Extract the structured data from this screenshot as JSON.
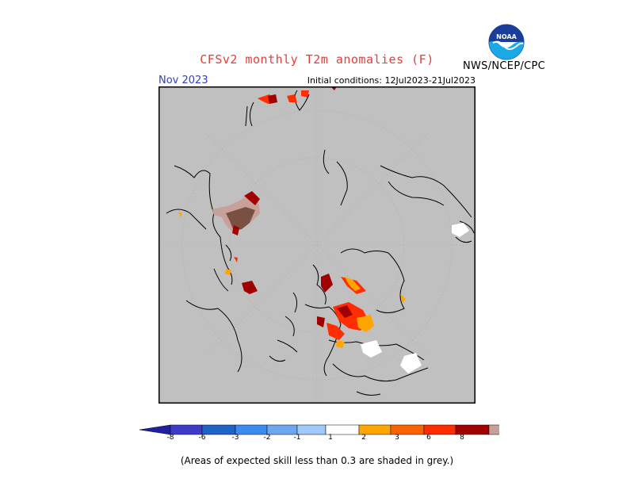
{
  "title": "CFSv2 monthly T2m anomalies (F)",
  "agency": "NWS/NCEP/CPC",
  "logo": {
    "text": "NOAA",
    "icon": "noaa-logo"
  },
  "forecast_month": "Nov 2023",
  "initial_conditions": "Initial conditions: 12Jul2023-21Jul2023",
  "map": {
    "projection": "north polar stereographic",
    "background_color": "#c0c0c0",
    "graticule": "dotted"
  },
  "colorbar": {
    "negative_colors": [
      "#2020a0",
      "#3c3cc8",
      "#1e64c8",
      "#3c8cf0",
      "#6ea6f0",
      "#a0c8f8"
    ],
    "neutral_color": "#ffffff",
    "positive_colors": [
      "#ffa500",
      "#fa6400",
      "#ff2d00",
      "#a00000",
      "#c8a09a",
      "#7a5045"
    ],
    "labels": [
      "-8",
      "-6",
      "-3",
      "-2",
      "-1",
      "1",
      "2",
      "3",
      "6",
      "8"
    ]
  },
  "footnote": "(Areas of expected skill less than 0.3 are shaded in grey.)"
}
